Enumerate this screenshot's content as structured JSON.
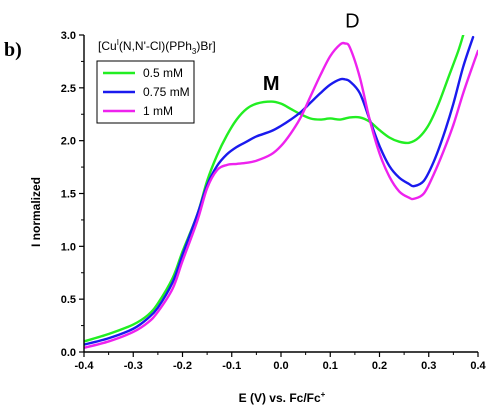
{
  "panel_label": "b)",
  "compound_label": {
    "base": "[Cu",
    "sup": "I",
    "middle": "(N,N'-Cl)(PPh",
    "sub": "3",
    "end": ")Br]"
  },
  "chart_data": {
    "type": "line",
    "xlabel": {
      "text": "E (V) vs. Fc/Fc",
      "sup": "+"
    },
    "ylabel": "I normalized",
    "xlim": [
      -0.4,
      0.4
    ],
    "ylim": [
      0.0,
      3.0
    ],
    "xticks": [
      "-0.4",
      "-0.3",
      "-0.2",
      "-0.1",
      "0.0",
      "0.1",
      "0.2",
      "0.3",
      "0.4"
    ],
    "yticks": [
      "0.0",
      "0.5",
      "1.0",
      "1.5",
      "2.0",
      "2.5",
      "3.0"
    ],
    "grid": false,
    "legend_position": "top-left",
    "annotations": [
      {
        "text": "M",
        "x": -0.02,
        "y": 2.48
      },
      {
        "text": "D",
        "x": 0.145,
        "y": 3.07
      }
    ],
    "series": [
      {
        "name": "0.5 mM",
        "color": "#22ee22",
        "points": [
          [
            -0.4,
            0.1
          ],
          [
            -0.35,
            0.17
          ],
          [
            -0.3,
            0.26
          ],
          [
            -0.27,
            0.35
          ],
          [
            -0.25,
            0.46
          ],
          [
            -0.22,
            0.7
          ],
          [
            -0.2,
            0.95
          ],
          [
            -0.17,
            1.3
          ],
          [
            -0.15,
            1.62
          ],
          [
            -0.13,
            1.86
          ],
          [
            -0.11,
            2.05
          ],
          [
            -0.09,
            2.2
          ],
          [
            -0.07,
            2.3
          ],
          [
            -0.05,
            2.35
          ],
          [
            -0.02,
            2.37
          ],
          [
            0.0,
            2.35
          ],
          [
            0.02,
            2.3
          ],
          [
            0.04,
            2.25
          ],
          [
            0.06,
            2.21
          ],
          [
            0.08,
            2.2
          ],
          [
            0.1,
            2.21
          ],
          [
            0.12,
            2.2
          ],
          [
            0.14,
            2.22
          ],
          [
            0.16,
            2.22
          ],
          [
            0.18,
            2.18
          ],
          [
            0.2,
            2.1
          ],
          [
            0.22,
            2.03
          ],
          [
            0.24,
            1.99
          ],
          [
            0.26,
            1.98
          ],
          [
            0.28,
            2.03
          ],
          [
            0.3,
            2.15
          ],
          [
            0.32,
            2.35
          ],
          [
            0.34,
            2.6
          ],
          [
            0.36,
            2.85
          ],
          [
            0.37,
            3.0
          ]
        ]
      },
      {
        "name": "0.75 mM",
        "color": "#1a1aee",
        "points": [
          [
            -0.4,
            0.07
          ],
          [
            -0.35,
            0.13
          ],
          [
            -0.3,
            0.22
          ],
          [
            -0.27,
            0.32
          ],
          [
            -0.25,
            0.42
          ],
          [
            -0.22,
            0.66
          ],
          [
            -0.2,
            0.92
          ],
          [
            -0.17,
            1.3
          ],
          [
            -0.15,
            1.58
          ],
          [
            -0.13,
            1.76
          ],
          [
            -0.11,
            1.87
          ],
          [
            -0.09,
            1.94
          ],
          [
            -0.07,
            1.99
          ],
          [
            -0.05,
            2.04
          ],
          [
            -0.02,
            2.09
          ],
          [
            0.0,
            2.14
          ],
          [
            0.02,
            2.2
          ],
          [
            0.04,
            2.27
          ],
          [
            0.06,
            2.36
          ],
          [
            0.08,
            2.45
          ],
          [
            0.1,
            2.53
          ],
          [
            0.12,
            2.58
          ],
          [
            0.13,
            2.58
          ],
          [
            0.14,
            2.56
          ],
          [
            0.16,
            2.45
          ],
          [
            0.18,
            2.2
          ],
          [
            0.2,
            1.95
          ],
          [
            0.22,
            1.76
          ],
          [
            0.24,
            1.65
          ],
          [
            0.26,
            1.59
          ],
          [
            0.27,
            1.57
          ],
          [
            0.29,
            1.62
          ],
          [
            0.31,
            1.8
          ],
          [
            0.33,
            2.05
          ],
          [
            0.35,
            2.35
          ],
          [
            0.37,
            2.7
          ],
          [
            0.39,
            2.98
          ]
        ]
      },
      {
        "name": "1 mM",
        "color": "#ee22ee",
        "points": [
          [
            -0.4,
            0.04
          ],
          [
            -0.35,
            0.1
          ],
          [
            -0.3,
            0.19
          ],
          [
            -0.27,
            0.28
          ],
          [
            -0.25,
            0.38
          ],
          [
            -0.22,
            0.6
          ],
          [
            -0.2,
            0.86
          ],
          [
            -0.17,
            1.24
          ],
          [
            -0.15,
            1.55
          ],
          [
            -0.13,
            1.72
          ],
          [
            -0.11,
            1.77
          ],
          [
            -0.09,
            1.78
          ],
          [
            -0.07,
            1.79
          ],
          [
            -0.05,
            1.81
          ],
          [
            -0.02,
            1.87
          ],
          [
            0.0,
            1.95
          ],
          [
            0.02,
            2.07
          ],
          [
            0.04,
            2.22
          ],
          [
            0.06,
            2.42
          ],
          [
            0.08,
            2.62
          ],
          [
            0.1,
            2.8
          ],
          [
            0.12,
            2.91
          ],
          [
            0.13,
            2.92
          ],
          [
            0.14,
            2.88
          ],
          [
            0.16,
            2.6
          ],
          [
            0.18,
            2.2
          ],
          [
            0.2,
            1.88
          ],
          [
            0.22,
            1.66
          ],
          [
            0.24,
            1.52
          ],
          [
            0.26,
            1.46
          ],
          [
            0.27,
            1.45
          ],
          [
            0.29,
            1.5
          ],
          [
            0.31,
            1.68
          ],
          [
            0.33,
            1.9
          ],
          [
            0.35,
            2.15
          ],
          [
            0.37,
            2.45
          ],
          [
            0.39,
            2.72
          ],
          [
            0.4,
            2.85
          ]
        ]
      }
    ]
  }
}
